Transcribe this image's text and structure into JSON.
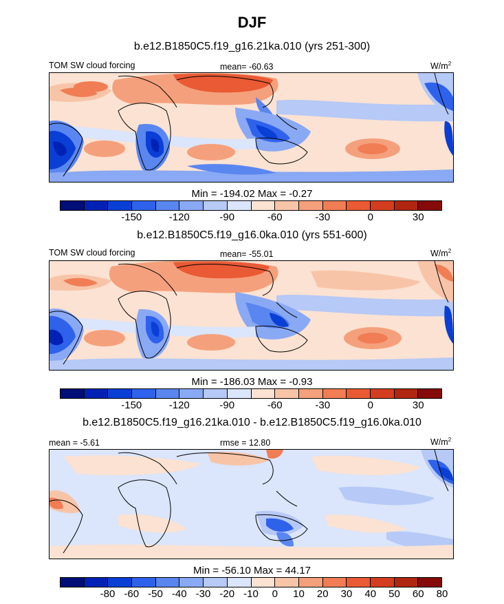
{
  "figure": {
    "title": "DJF"
  },
  "panels": [
    {
      "case_title": "b.e12.B1850C5.f19_g16.21ka.010 (yrs 251-300)",
      "left_label": "TOM SW cloud forcing",
      "center_label": "mean= -60.63",
      "units": "W/m",
      "units_exp": "2",
      "min_max": "Min = -194.02 Max =  -0.27",
      "colorbar": {
        "colors": [
          "#000e78",
          "#0022b4",
          "#0a3fd6",
          "#2f62eb",
          "#5a86f0",
          "#8aa9f4",
          "#b6c9f7",
          "#dbe5fb",
          "#fbe2d2",
          "#f8c4a8",
          "#f5a07c",
          "#f17d55",
          "#ea5a35",
          "#d43d1f",
          "#b02611",
          "#850a0a"
        ],
        "tick_labels": [
          "-150",
          "-120",
          "-90",
          "-60",
          "-30",
          "0",
          "30"
        ]
      }
    },
    {
      "case_title": "b.e12.B1850C5.f19_g16.0ka.010 (yrs 551-600)",
      "left_label": "TOM SW cloud forcing",
      "center_label": "mean= -55.01",
      "units": "W/m",
      "units_exp": "2",
      "min_max": "Min = -186.03 Max =  -0.93",
      "colorbar": {
        "colors": [
          "#000e78",
          "#0022b4",
          "#0a3fd6",
          "#2f62eb",
          "#5a86f0",
          "#8aa9f4",
          "#b6c9f7",
          "#dbe5fb",
          "#fbe2d2",
          "#f8c4a8",
          "#f5a07c",
          "#f17d55",
          "#ea5a35",
          "#d43d1f",
          "#b02611",
          "#850a0a"
        ],
        "tick_labels": [
          "-150",
          "-120",
          "-90",
          "-60",
          "-30",
          "0",
          "30"
        ]
      }
    },
    {
      "case_title": "b.e12.B1850C5.f19_g16.21ka.010 - b.e12.B1850C5.f19_g16.0ka.010",
      "left_label": "mean =  -5.61",
      "center_label": "rmse =  12.80",
      "units": "W/m",
      "units_exp": "2",
      "min_max": "Min = -56.10 Max =  44.17",
      "colorbar": {
        "colors": [
          "#000e78",
          "#0022b4",
          "#0a3fd6",
          "#2f62eb",
          "#5a86f0",
          "#8aa9f4",
          "#b6c9f7",
          "#dbe5fb",
          "#fbe2d2",
          "#f8c4a8",
          "#f5a07c",
          "#f17d55",
          "#ea5a35",
          "#d43d1f",
          "#b02611",
          "#850a0a"
        ],
        "tick_labels": [
          "-80",
          "-60",
          "-50",
          "-40",
          "-30",
          "-20",
          "-10",
          "0",
          "10",
          "20",
          "30",
          "40",
          "50",
          "60",
          "80"
        ]
      }
    }
  ],
  "chart_data": [
    {
      "type": "heatmap",
      "title": "b.e12.B1850C5.f19_g16.21ka.010 (yrs 251-300)",
      "variable": "TOM SW cloud forcing",
      "units": "W/m2",
      "mean": -60.63,
      "min": -194.02,
      "max": -0.27,
      "contour_levels": [
        -150,
        -120,
        -90,
        -60,
        -30,
        0,
        30
      ]
    },
    {
      "type": "heatmap",
      "title": "b.e12.B1850C5.f19_g16.0ka.010 (yrs 551-600)",
      "variable": "TOM SW cloud forcing",
      "units": "W/m2",
      "mean": -55.01,
      "min": -186.03,
      "max": -0.93,
      "contour_levels": [
        -150,
        -120,
        -90,
        -60,
        -30,
        0,
        30
      ]
    },
    {
      "type": "heatmap",
      "title": "b.e12.B1850C5.f19_g16.21ka.010 - b.e12.B1850C5.f19_g16.0ka.010",
      "units": "W/m2",
      "mean": -5.61,
      "rmse": 12.8,
      "min": -56.1,
      "max": 44.17,
      "contour_levels": [
        -80,
        -60,
        -50,
        -40,
        -30,
        -20,
        -10,
        0,
        10,
        20,
        30,
        40,
        50,
        60,
        80
      ]
    }
  ]
}
